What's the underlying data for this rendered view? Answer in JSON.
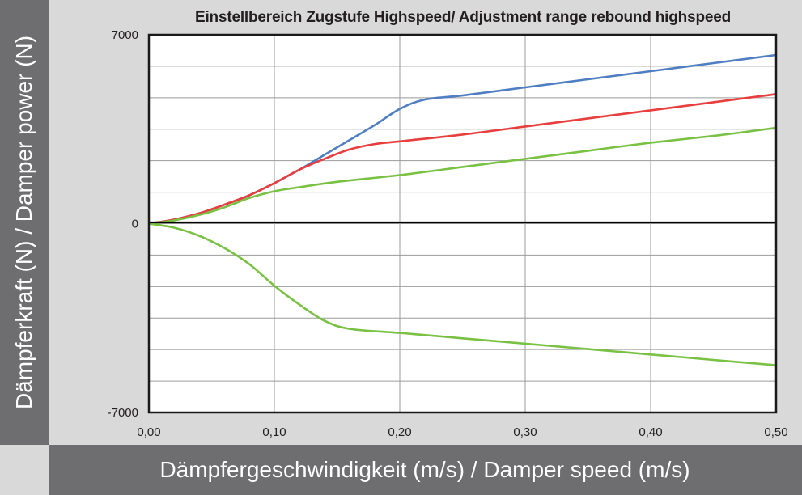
{
  "chart_data": {
    "type": "line",
    "title": "Einstellbereich Zugstufe Highspeed/ Adjustment range rebound highspeed",
    "xlabel": "Dämpfergeschwindigkeit (m/s) / Damper speed (m/s)",
    "ylabel": "Dämpferkraft (N) / Damper power (N)",
    "xlim": [
      0,
      0.5
    ],
    "ylim": [
      -7000,
      7000
    ],
    "x_ticks": [
      "0,00",
      "0,10",
      "0,20",
      "0,30",
      "0,40",
      "0,50"
    ],
    "y_ticks": [
      "7000",
      "0",
      "-7000"
    ],
    "grid": true,
    "legend": "none",
    "series": [
      {
        "color": "#4f7fc2",
        "points": [
          [
            0,
            0
          ],
          [
            0.02,
            150
          ],
          [
            0.04,
            380
          ],
          [
            0.06,
            700
          ],
          [
            0.08,
            1050
          ],
          [
            0.1,
            1500
          ],
          [
            0.12,
            2000
          ],
          [
            0.14,
            2550
          ],
          [
            0.16,
            3100
          ],
          [
            0.18,
            3650
          ],
          [
            0.2,
            4250
          ],
          [
            0.22,
            4600
          ],
          [
            0.25,
            4750
          ],
          [
            0.3,
            5050
          ],
          [
            0.35,
            5350
          ],
          [
            0.4,
            5650
          ],
          [
            0.45,
            5950
          ],
          [
            0.5,
            6250
          ]
        ]
      },
      {
        "color": "#e83e3e",
        "points": [
          [
            0,
            0
          ],
          [
            0.02,
            150
          ],
          [
            0.04,
            380
          ],
          [
            0.06,
            700
          ],
          [
            0.08,
            1050
          ],
          [
            0.1,
            1500
          ],
          [
            0.12,
            2000
          ],
          [
            0.14,
            2400
          ],
          [
            0.16,
            2750
          ],
          [
            0.18,
            2950
          ],
          [
            0.2,
            3050
          ],
          [
            0.25,
            3300
          ],
          [
            0.3,
            3600
          ],
          [
            0.35,
            3900
          ],
          [
            0.4,
            4200
          ],
          [
            0.45,
            4500
          ],
          [
            0.5,
            4800
          ]
        ]
      },
      {
        "color": "#79c143",
        "points": [
          [
            0,
            0
          ],
          [
            0.02,
            120
          ],
          [
            0.04,
            320
          ],
          [
            0.06,
            600
          ],
          [
            0.08,
            950
          ],
          [
            0.1,
            1200
          ],
          [
            0.12,
            1350
          ],
          [
            0.15,
            1550
          ],
          [
            0.2,
            1800
          ],
          [
            0.25,
            2100
          ],
          [
            0.3,
            2400
          ],
          [
            0.35,
            2700
          ],
          [
            0.4,
            3000
          ],
          [
            0.45,
            3250
          ],
          [
            0.5,
            3550
          ]
        ]
      },
      {
        "color": "#79c143",
        "points": [
          [
            0,
            0
          ],
          [
            0.02,
            -150
          ],
          [
            0.04,
            -450
          ],
          [
            0.06,
            -900
          ],
          [
            0.08,
            -1500
          ],
          [
            0.1,
            -2300
          ],
          [
            0.12,
            -3000
          ],
          [
            0.14,
            -3600
          ],
          [
            0.16,
            -3900
          ],
          [
            0.2,
            -4050
          ],
          [
            0.25,
            -4250
          ],
          [
            0.3,
            -4450
          ],
          [
            0.35,
            -4650
          ],
          [
            0.4,
            -4850
          ],
          [
            0.45,
            -5050
          ],
          [
            0.5,
            -5250
          ]
        ]
      }
    ]
  }
}
